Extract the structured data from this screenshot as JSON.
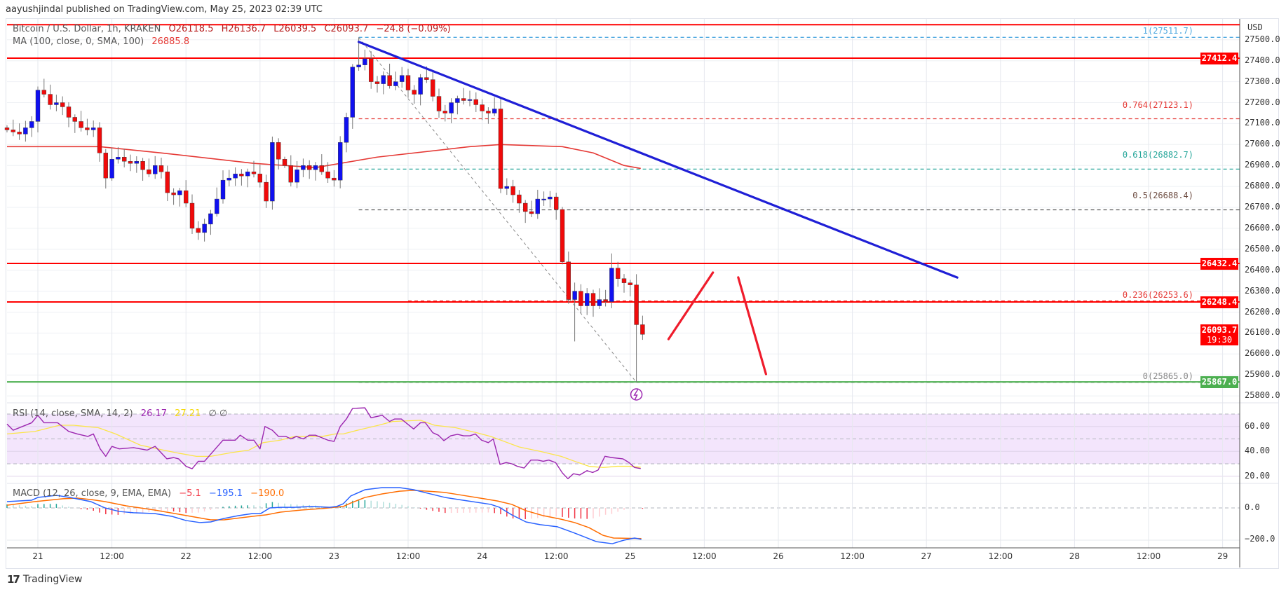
{
  "header": {
    "published": "aayushjindal published on TradingView.com, May 25, 2023 02:39 UTC"
  },
  "legend": {
    "symbol": "Bitcoin / U.S. Dollar, 1h, KRAKEN",
    "open": "O26118.5",
    "high": "H26136.7",
    "low": "L26039.5",
    "close": "C26093.7",
    "change": "−24.8 (−0.09%)",
    "ma_label": "MA (100, close, 0, SMA, 100)",
    "ma_value": "26885.8"
  },
  "rsi_legend": {
    "label": "RSI (14, close, SMA, 14, 2)",
    "rsi": "26.17",
    "sma": "27.21",
    "extra": "∅  ∅"
  },
  "macd_legend": {
    "label": "MACD (12, 26, close, 9, EMA, EMA)",
    "hist": "−5.1",
    "macd": "−195.1",
    "signal": "−190.0"
  },
  "axis": {
    "currency": "USD",
    "badges": {
      "r1": "27412.4",
      "r2": "26432.4",
      "r3": "26248.4",
      "last": "26093.7",
      "countdown": "19:30",
      "support": "25867.0"
    },
    "rsi_ticks": [
      "60.00",
      "40.00",
      "20.00"
    ],
    "macd_ticks": [
      "0.0",
      "−200.0"
    ]
  },
  "fib_labels": {
    "f1": "1(27511.7)",
    "f764": "0.764(27123.1)",
    "f618": "0.618(26882.7)",
    "f5": "0.5(26688.4)",
    "f236": "0.236(26253.6)",
    "f0": "0(25865.0)"
  },
  "footer": {
    "brand": "TradingView"
  },
  "colors": {
    "up": "#1010f0",
    "down": "#f00a0a",
    "ma": "#e53935",
    "trend": "#1f1fd6",
    "rsi": "#9c27b0",
    "rsi_sma": "#fbe54a",
    "macd": "#2962ff",
    "signal": "#ff6d00",
    "support": "#4caf50"
  },
  "chart_data": {
    "type": "candlestick",
    "price_ticks": [
      27500,
      27400,
      27300,
      27200,
      27100,
      27000,
      26900,
      26800,
      26700,
      26600,
      26500,
      26400,
      26300,
      26200,
      26100,
      26000,
      25900,
      25800
    ],
    "time_labels": [
      "21",
      "12:00",
      "22",
      "12:00",
      "23",
      "12:00",
      "24",
      "12:00",
      "25",
      "12:00",
      "26",
      "12:00",
      "27",
      "12:00",
      "28",
      "12:00",
      "29"
    ],
    "first_open": 27080,
    "closes": [
      27070,
      27060,
      27050,
      27080,
      27110,
      27260,
      27240,
      27190,
      27200,
      27180,
      27130,
      27110,
      27080,
      27070,
      27080,
      26960,
      26840,
      26930,
      26940,
      26920,
      26910,
      26920,
      26880,
      26860,
      26900,
      26870,
      26770,
      26760,
      26780,
      26720,
      26600,
      26580,
      26620,
      26670,
      26740,
      26830,
      26840,
      26860,
      26850,
      26870,
      26860,
      26820,
      26730,
      27010,
      26930,
      26900,
      26820,
      26880,
      26900,
      26880,
      26900,
      26870,
      26840,
      26830,
      27010,
      27130,
      27370,
      27380,
      27410,
      27300,
      27290,
      27330,
      27280,
      27300,
      27330,
      27260,
      27240,
      27320,
      27310,
      27230,
      27160,
      27150,
      27200,
      27220,
      27210,
      27215,
      27190,
      27160,
      27150,
      27170,
      26790,
      26800,
      26760,
      26720,
      26680,
      26670,
      26740,
      26740,
      26750,
      26690,
      26440,
      26260,
      26300,
      26230,
      26290,
      26230,
      26260,
      26250,
      26410,
      26360,
      26340,
      26330,
      26140,
      26093.7
    ],
    "wick_overrides": {
      "57": {
        "h": 27511.7
      },
      "102": {
        "l": 25865
      },
      "98": {
        "h": 26480
      },
      "92": {
        "l": 26060
      }
    },
    "ma100": [
      [
        0,
        26990
      ],
      [
        15,
        26990
      ],
      [
        25,
        26960
      ],
      [
        40,
        26910
      ],
      [
        50,
        26890
      ],
      [
        60,
        26940
      ],
      [
        75,
        26990
      ],
      [
        80,
        27000
      ],
      [
        90,
        26990
      ],
      [
        95,
        26960
      ],
      [
        100,
        26900
      ],
      [
        102.7,
        26885.8
      ]
    ],
    "horizontal_lines": [
      {
        "price": 27572,
        "color": "red"
      },
      {
        "price": 27412.4,
        "color": "red"
      },
      {
        "price": 26432.4,
        "color": "red"
      },
      {
        "price": 26248.4,
        "color": "red"
      },
      {
        "price": 25867.0,
        "color": "green"
      }
    ],
    "fib_levels": [
      {
        "ratio": 1,
        "price": 27511.7,
        "color": "#4fa9e0",
        "start": 57
      },
      {
        "ratio": 0.764,
        "price": 27123.1,
        "color": "#e53935",
        "start": 57
      },
      {
        "ratio": 0.618,
        "price": 26882.7,
        "color": "#26a69a",
        "start": 57
      },
      {
        "ratio": 0.5,
        "price": 26688.4,
        "color": "#555555",
        "start": 57
      },
      {
        "ratio": 0.236,
        "price": 26253.6,
        "color": "#e53935",
        "start": 65
      },
      {
        "ratio": 0,
        "price": 25865.0,
        "color": "#777777",
        "start": 57
      }
    ],
    "fib_diagonal": [
      [
        57,
        27511.7
      ],
      [
        102,
        25865
      ]
    ],
    "trendline": [
      [
        57,
        27490
      ],
      [
        154,
        26365
      ]
    ],
    "projection": [
      [
        [
          107.2,
          26071
        ],
        [
          114.4,
          26389
        ]
      ],
      [
        [
          118.5,
          26366
        ],
        [
          123,
          25904
        ]
      ]
    ],
    "rsi": [
      [
        0,
        62
      ],
      [
        1,
        57
      ],
      [
        4,
        63
      ],
      [
        5,
        69
      ],
      [
        6,
        63
      ],
      [
        8.2,
        63
      ],
      [
        10,
        56
      ],
      [
        11.4,
        54
      ],
      [
        13.1,
        52
      ],
      [
        14,
        54
      ],
      [
        15.1,
        42
      ],
      [
        16,
        36
      ],
      [
        17,
        44
      ],
      [
        18.2,
        42
      ],
      [
        20.5,
        43
      ],
      [
        22.7,
        41
      ],
      [
        24,
        44
      ],
      [
        25.9,
        34
      ],
      [
        27,
        35
      ],
      [
        27.8,
        34
      ],
      [
        29,
        28
      ],
      [
        30,
        26
      ],
      [
        31,
        32
      ],
      [
        32,
        32
      ],
      [
        35,
        49
      ],
      [
        36,
        49
      ],
      [
        37,
        49
      ],
      [
        37.8,
        53
      ],
      [
        39,
        49
      ],
      [
        40,
        49
      ],
      [
        41,
        42
      ],
      [
        41.8,
        60
      ],
      [
        43,
        57
      ],
      [
        44,
        52
      ],
      [
        45.2,
        52
      ],
      [
        46,
        50
      ],
      [
        46.9,
        52
      ],
      [
        48,
        50
      ],
      [
        49,
        53
      ],
      [
        50,
        53
      ],
      [
        51,
        51
      ],
      [
        52,
        49
      ],
      [
        53,
        48
      ],
      [
        54,
        60
      ],
      [
        55,
        66
      ],
      [
        56,
        74.5
      ],
      [
        58,
        75
      ],
      [
        59,
        67
      ],
      [
        60.8,
        69
      ],
      [
        62,
        64
      ],
      [
        62.8,
        66
      ],
      [
        63.9,
        66
      ],
      [
        65.9,
        58
      ],
      [
        67,
        63
      ],
      [
        67.8,
        63
      ],
      [
        69,
        55
      ],
      [
        69.9,
        53
      ],
      [
        70.8,
        48.6
      ],
      [
        71.9,
        52.5
      ],
      [
        73,
        53.7
      ],
      [
        74,
        52.5
      ],
      [
        75,
        52.5
      ],
      [
        75.9,
        54
      ],
      [
        76.9,
        49
      ],
      [
        78,
        47
      ],
      [
        78.8,
        50
      ],
      [
        79.9,
        29.5
      ],
      [
        80.9,
        31
      ],
      [
        81.8,
        30
      ],
      [
        82.7,
        28
      ],
      [
        83.8,
        26.6
      ],
      [
        84.9,
        33
      ],
      [
        86,
        33
      ],
      [
        86.9,
        32
      ],
      [
        87.8,
        33
      ],
      [
        88.9,
        31
      ],
      [
        90,
        22.7
      ],
      [
        90.9,
        18
      ],
      [
        91.8,
        22
      ],
      [
        92.8,
        21
      ],
      [
        94,
        24.5
      ],
      [
        94.9,
        23
      ],
      [
        95.8,
        25
      ],
      [
        96.9,
        36
      ],
      [
        98,
        35
      ],
      [
        99.8,
        34
      ],
      [
        100.8,
        31
      ],
      [
        101.7,
        27
      ],
      [
        102.7,
        26.17
      ]
    ],
    "rsi_sma": [
      [
        0,
        54
      ],
      [
        4.5,
        56
      ],
      [
        8.5,
        61
      ],
      [
        10.8,
        61
      ],
      [
        14.8,
        59
      ],
      [
        17.6,
        54
      ],
      [
        21.6,
        45
      ],
      [
        24.4,
        42
      ],
      [
        27.3,
        39
      ],
      [
        30.7,
        36
      ],
      [
        33,
        36
      ],
      [
        36.4,
        39
      ],
      [
        39.2,
        41
      ],
      [
        41.5,
        47
      ],
      [
        44.3,
        49
      ],
      [
        46.6,
        52
      ],
      [
        51.1,
        52
      ],
      [
        53.2,
        54
      ],
      [
        54.5,
        54
      ],
      [
        56.8,
        57
      ],
      [
        60.2,
        61
      ],
      [
        62.5,
        64
      ],
      [
        67,
        65
      ],
      [
        69.3,
        61
      ],
      [
        72.7,
        59
      ],
      [
        76.1,
        55
      ],
      [
        78.4,
        52
      ],
      [
        83,
        43.5
      ],
      [
        86.4,
        40
      ],
      [
        89.8,
        36
      ],
      [
        92,
        32
      ],
      [
        94.3,
        28
      ],
      [
        96.6,
        27
      ],
      [
        98.9,
        28
      ],
      [
        101.1,
        28
      ],
      [
        102.7,
        27.21
      ]
    ],
    "macd": [
      [
        0,
        39
      ],
      [
        4,
        48
      ],
      [
        5,
        65
      ],
      [
        8,
        78
      ],
      [
        10.2,
        65
      ],
      [
        13.6,
        39
      ],
      [
        15.9,
        0
      ],
      [
        18.2,
        -22
      ],
      [
        20.5,
        -30
      ],
      [
        23.9,
        -35
      ],
      [
        26.7,
        -52
      ],
      [
        29,
        -78
      ],
      [
        31.3,
        -91
      ],
      [
        33,
        -87
      ],
      [
        35.2,
        -65
      ],
      [
        37.5,
        -48
      ],
      [
        39.8,
        -35
      ],
      [
        41.1,
        -35
      ],
      [
        42.6,
        0
      ],
      [
        44.3,
        4
      ],
      [
        46.6,
        4
      ],
      [
        49.4,
        9
      ],
      [
        52.3,
        4
      ],
      [
        53.4,
        9
      ],
      [
        54.5,
        26
      ],
      [
        55.7,
        74
      ],
      [
        58,
        113
      ],
      [
        60.8,
        126
      ],
      [
        63.6,
        126
      ],
      [
        65.9,
        113
      ],
      [
        68.2,
        91
      ],
      [
        71,
        65
      ],
      [
        73.9,
        48
      ],
      [
        78.4,
        22
      ],
      [
        79.8,
        4
      ],
      [
        81.8,
        -43
      ],
      [
        84.1,
        -87
      ],
      [
        86.4,
        -104
      ],
      [
        89.2,
        -117
      ],
      [
        91.7,
        -152
      ],
      [
        93.2,
        -174
      ],
      [
        95.5,
        -209
      ],
      [
        98.1,
        -222
      ],
      [
        100,
        -200
      ],
      [
        101.7,
        -187
      ],
      [
        102.8,
        -195.1
      ]
    ],
    "signal": [
      [
        0,
        17
      ],
      [
        4.5,
        39
      ],
      [
        9.1,
        57
      ],
      [
        11.4,
        61
      ],
      [
        13.6,
        52
      ],
      [
        15.9,
        39
      ],
      [
        19.3,
        13
      ],
      [
        23.9,
        -13
      ],
      [
        28.4,
        -43
      ],
      [
        33,
        -74
      ],
      [
        35.2,
        -74
      ],
      [
        39.8,
        -52
      ],
      [
        42,
        -43
      ],
      [
        44.3,
        -26
      ],
      [
        47.7,
        -13
      ],
      [
        51.1,
        -4
      ],
      [
        54.5,
        9
      ],
      [
        55.7,
        30
      ],
      [
        58,
        65
      ],
      [
        60.8,
        87
      ],
      [
        63.6,
        104
      ],
      [
        65.9,
        109
      ],
      [
        68.2,
        104
      ],
      [
        71,
        96
      ],
      [
        73.9,
        78
      ],
      [
        77.3,
        57
      ],
      [
        79.5,
        43
      ],
      [
        81.8,
        22
      ],
      [
        84.1,
        -17
      ],
      [
        86.9,
        -48
      ],
      [
        89.8,
        -70
      ],
      [
        92,
        -91
      ],
      [
        94.3,
        -122
      ],
      [
        96.6,
        -170
      ],
      [
        98.3,
        -187
      ],
      [
        102.8,
        -190
      ]
    ]
  }
}
